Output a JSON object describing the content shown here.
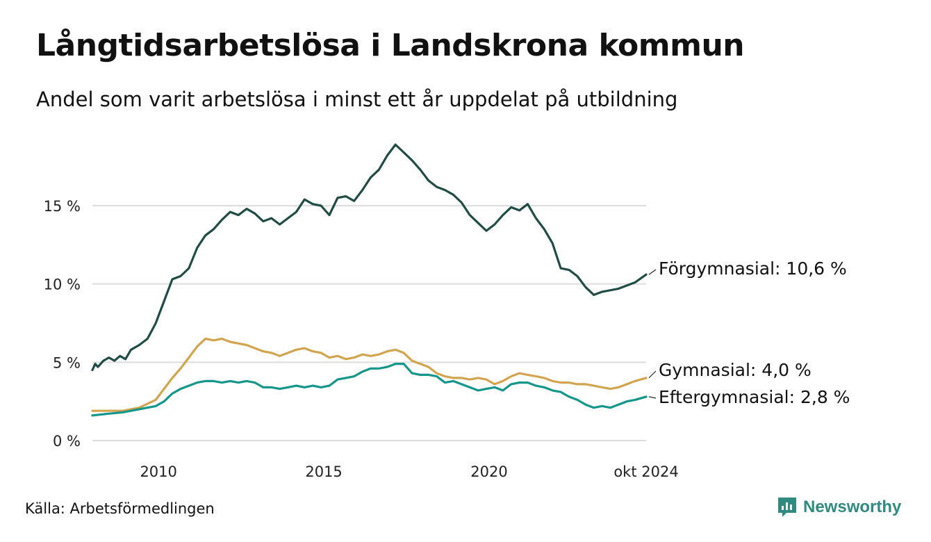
{
  "title": "Långtidsarbetslösa i Landskrona kommun",
  "subtitle": "Andel som varit arbetslösa i minst ett år uppdelat på utbildning",
  "source": "Källa: Arbetsförmedlingen",
  "brand": "Newsworthy",
  "colors": {
    "forgymnasial": "#1f4d45",
    "gymnasial": "#d2a44f",
    "eftergymnasial": "#14968a",
    "grid": "#dddddd",
    "brand": "#2f8a80"
  },
  "chart_data": {
    "type": "line",
    "x_range": [
      "2008-01",
      "2024-10"
    ],
    "x_ticks": [
      {
        "label": "2010",
        "date": "2010-01"
      },
      {
        "label": "2015",
        "date": "2015-01"
      },
      {
        "label": "2020",
        "date": "2020-01"
      },
      {
        "label": "okt 2024",
        "date": "2024-10"
      }
    ],
    "y_ticks": [
      {
        "label": "0 %",
        "value": 0
      },
      {
        "label": "5 %",
        "value": 5
      },
      {
        "label": "10 %",
        "value": 10
      },
      {
        "label": "15 %",
        "value": 15
      }
    ],
    "ylim": [
      0,
      19
    ],
    "grid": true,
    "series": [
      {
        "key": "forgymnasial",
        "label": "Förgymnasial: 10,6 %",
        "points": [
          [
            "2008-01",
            4.5
          ],
          [
            "2008-02",
            4.9
          ],
          [
            "2008-03",
            4.7
          ],
          [
            "2008-05",
            5.1
          ],
          [
            "2008-07",
            5.3
          ],
          [
            "2008-09",
            5.1
          ],
          [
            "2008-11",
            5.4
          ],
          [
            "2009-01",
            5.2
          ],
          [
            "2009-03",
            5.8
          ],
          [
            "2009-06",
            6.1
          ],
          [
            "2009-09",
            6.5
          ],
          [
            "2009-12",
            7.5
          ],
          [
            "2010-03",
            8.9
          ],
          [
            "2010-06",
            10.3
          ],
          [
            "2010-09",
            10.5
          ],
          [
            "2010-12",
            11.0
          ],
          [
            "2011-03",
            12.3
          ],
          [
            "2011-06",
            13.1
          ],
          [
            "2011-09",
            13.5
          ],
          [
            "2011-12",
            14.1
          ],
          [
            "2012-03",
            14.6
          ],
          [
            "2012-06",
            14.4
          ],
          [
            "2012-09",
            14.8
          ],
          [
            "2012-12",
            14.5
          ],
          [
            "2013-03",
            14.0
          ],
          [
            "2013-06",
            14.2
          ],
          [
            "2013-09",
            13.8
          ],
          [
            "2013-12",
            14.2
          ],
          [
            "2014-03",
            14.6
          ],
          [
            "2014-06",
            15.4
          ],
          [
            "2014-09",
            15.1
          ],
          [
            "2014-12",
            15.0
          ],
          [
            "2015-03",
            14.4
          ],
          [
            "2015-06",
            15.5
          ],
          [
            "2015-09",
            15.6
          ],
          [
            "2015-12",
            15.3
          ],
          [
            "2016-03",
            16.0
          ],
          [
            "2016-06",
            16.8
          ],
          [
            "2016-09",
            17.3
          ],
          [
            "2016-12",
            18.2
          ],
          [
            "2017-03",
            18.9
          ],
          [
            "2017-06",
            18.4
          ],
          [
            "2017-09",
            17.9
          ],
          [
            "2017-12",
            17.3
          ],
          [
            "2018-03",
            16.6
          ],
          [
            "2018-06",
            16.2
          ],
          [
            "2018-09",
            16.0
          ],
          [
            "2018-12",
            15.7
          ],
          [
            "2019-03",
            15.2
          ],
          [
            "2019-06",
            14.4
          ],
          [
            "2019-09",
            13.9
          ],
          [
            "2019-12",
            13.4
          ],
          [
            "2020-03",
            13.8
          ],
          [
            "2020-06",
            14.4
          ],
          [
            "2020-09",
            14.9
          ],
          [
            "2020-12",
            14.7
          ],
          [
            "2021-03",
            15.1
          ],
          [
            "2021-06",
            14.2
          ],
          [
            "2021-09",
            13.5
          ],
          [
            "2021-12",
            12.6
          ],
          [
            "2022-03",
            11.0
          ],
          [
            "2022-06",
            10.9
          ],
          [
            "2022-09",
            10.5
          ],
          [
            "2022-12",
            9.8
          ],
          [
            "2023-03",
            9.3
          ],
          [
            "2023-06",
            9.5
          ],
          [
            "2023-09",
            9.6
          ],
          [
            "2023-12",
            9.7
          ],
          [
            "2024-03",
            9.9
          ],
          [
            "2024-06",
            10.1
          ],
          [
            "2024-10",
            10.6
          ]
        ]
      },
      {
        "key": "gymnasial",
        "label": "Gymnasial:  4,0 %",
        "points": [
          [
            "2008-01",
            1.9
          ],
          [
            "2008-06",
            1.9
          ],
          [
            "2008-12",
            1.9
          ],
          [
            "2009-06",
            2.1
          ],
          [
            "2009-12",
            2.6
          ],
          [
            "2010-03",
            3.3
          ],
          [
            "2010-06",
            4.0
          ],
          [
            "2010-09",
            4.6
          ],
          [
            "2010-12",
            5.3
          ],
          [
            "2011-03",
            6.0
          ],
          [
            "2011-06",
            6.5
          ],
          [
            "2011-09",
            6.4
          ],
          [
            "2011-12",
            6.5
          ],
          [
            "2012-03",
            6.3
          ],
          [
            "2012-06",
            6.2
          ],
          [
            "2012-09",
            6.1
          ],
          [
            "2012-12",
            5.9
          ],
          [
            "2013-03",
            5.7
          ],
          [
            "2013-06",
            5.6
          ],
          [
            "2013-09",
            5.4
          ],
          [
            "2013-12",
            5.6
          ],
          [
            "2014-03",
            5.8
          ],
          [
            "2014-06",
            5.9
          ],
          [
            "2014-09",
            5.7
          ],
          [
            "2014-12",
            5.6
          ],
          [
            "2015-03",
            5.3
          ],
          [
            "2015-06",
            5.4
          ],
          [
            "2015-09",
            5.2
          ],
          [
            "2015-12",
            5.3
          ],
          [
            "2016-03",
            5.5
          ],
          [
            "2016-06",
            5.4
          ],
          [
            "2016-09",
            5.5
          ],
          [
            "2016-12",
            5.7
          ],
          [
            "2017-03",
            5.8
          ],
          [
            "2017-06",
            5.6
          ],
          [
            "2017-09",
            5.1
          ],
          [
            "2017-12",
            4.9
          ],
          [
            "2018-03",
            4.7
          ],
          [
            "2018-06",
            4.3
          ],
          [
            "2018-09",
            4.1
          ],
          [
            "2018-12",
            4.0
          ],
          [
            "2019-03",
            4.0
          ],
          [
            "2019-06",
            3.9
          ],
          [
            "2019-09",
            4.0
          ],
          [
            "2019-12",
            3.9
          ],
          [
            "2020-03",
            3.6
          ],
          [
            "2020-06",
            3.8
          ],
          [
            "2020-09",
            4.1
          ],
          [
            "2020-12",
            4.3
          ],
          [
            "2021-03",
            4.2
          ],
          [
            "2021-06",
            4.1
          ],
          [
            "2021-09",
            4.0
          ],
          [
            "2021-12",
            3.8
          ],
          [
            "2022-03",
            3.7
          ],
          [
            "2022-06",
            3.7
          ],
          [
            "2022-09",
            3.6
          ],
          [
            "2022-12",
            3.6
          ],
          [
            "2023-03",
            3.5
          ],
          [
            "2023-06",
            3.4
          ],
          [
            "2023-09",
            3.3
          ],
          [
            "2023-12",
            3.4
          ],
          [
            "2024-03",
            3.6
          ],
          [
            "2024-06",
            3.8
          ],
          [
            "2024-10",
            4.0
          ]
        ]
      },
      {
        "key": "eftergymnasial",
        "label": "Eftergymnasial:  2,8 %",
        "points": [
          [
            "2008-01",
            1.6
          ],
          [
            "2008-06",
            1.7
          ],
          [
            "2008-12",
            1.8
          ],
          [
            "2009-06",
            2.0
          ],
          [
            "2009-12",
            2.2
          ],
          [
            "2010-03",
            2.5
          ],
          [
            "2010-06",
            3.0
          ],
          [
            "2010-09",
            3.3
          ],
          [
            "2010-12",
            3.5
          ],
          [
            "2011-03",
            3.7
          ],
          [
            "2011-06",
            3.8
          ],
          [
            "2011-09",
            3.8
          ],
          [
            "2011-12",
            3.7
          ],
          [
            "2012-03",
            3.8
          ],
          [
            "2012-06",
            3.7
          ],
          [
            "2012-09",
            3.8
          ],
          [
            "2012-12",
            3.7
          ],
          [
            "2013-03",
            3.4
          ],
          [
            "2013-06",
            3.4
          ],
          [
            "2013-09",
            3.3
          ],
          [
            "2013-12",
            3.4
          ],
          [
            "2014-03",
            3.5
          ],
          [
            "2014-06",
            3.4
          ],
          [
            "2014-09",
            3.5
          ],
          [
            "2014-12",
            3.4
          ],
          [
            "2015-03",
            3.5
          ],
          [
            "2015-06",
            3.9
          ],
          [
            "2015-09",
            4.0
          ],
          [
            "2015-12",
            4.1
          ],
          [
            "2016-03",
            4.4
          ],
          [
            "2016-06",
            4.6
          ],
          [
            "2016-09",
            4.6
          ],
          [
            "2016-12",
            4.7
          ],
          [
            "2017-03",
            4.9
          ],
          [
            "2017-06",
            4.9
          ],
          [
            "2017-09",
            4.3
          ],
          [
            "2017-12",
            4.2
          ],
          [
            "2018-03",
            4.2
          ],
          [
            "2018-06",
            4.1
          ],
          [
            "2018-09",
            3.7
          ],
          [
            "2018-12",
            3.8
          ],
          [
            "2019-03",
            3.6
          ],
          [
            "2019-06",
            3.4
          ],
          [
            "2019-09",
            3.2
          ],
          [
            "2019-12",
            3.3
          ],
          [
            "2020-03",
            3.4
          ],
          [
            "2020-06",
            3.2
          ],
          [
            "2020-09",
            3.6
          ],
          [
            "2020-12",
            3.7
          ],
          [
            "2021-03",
            3.7
          ],
          [
            "2021-06",
            3.5
          ],
          [
            "2021-09",
            3.4
          ],
          [
            "2021-12",
            3.2
          ],
          [
            "2022-03",
            3.1
          ],
          [
            "2022-06",
            2.8
          ],
          [
            "2022-09",
            2.6
          ],
          [
            "2022-12",
            2.3
          ],
          [
            "2023-03",
            2.1
          ],
          [
            "2023-06",
            2.2
          ],
          [
            "2023-09",
            2.1
          ],
          [
            "2023-12",
            2.3
          ],
          [
            "2024-03",
            2.5
          ],
          [
            "2024-06",
            2.6
          ],
          [
            "2024-10",
            2.8
          ]
        ]
      }
    ]
  }
}
